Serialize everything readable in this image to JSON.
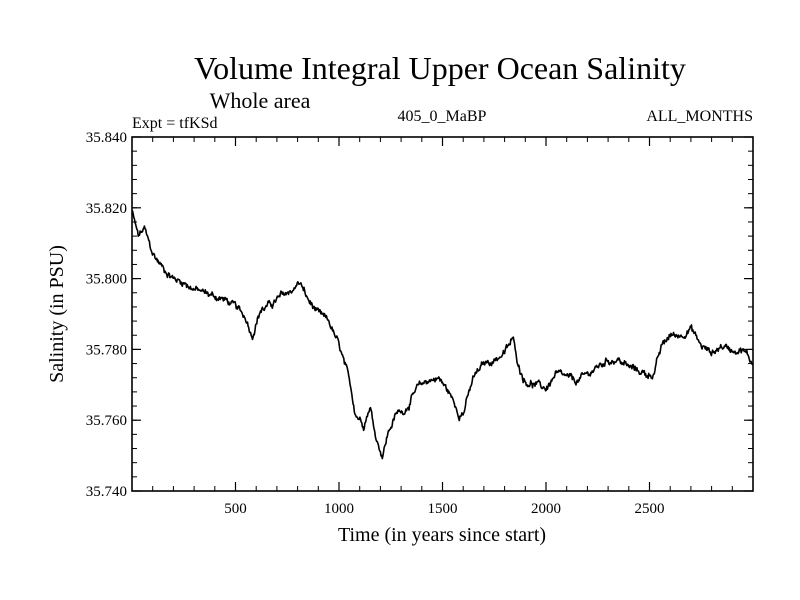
{
  "chart_data": {
    "type": "line",
    "title": "Volume Integral Upper Ocean Salinity",
    "subtitle": "Whole area",
    "info_left": "Expt = tfKSd",
    "info_center": "405_0_MaBP",
    "info_right": "ALL_MONTHS",
    "xlabel": "Time (in years since start)",
    "ylabel": "Salinity (in PSU)",
    "xlim": [
      0,
      3000
    ],
    "ylim": [
      35.74,
      35.84
    ],
    "x_ticks": [
      500,
      1000,
      1500,
      2000,
      2500
    ],
    "x_tick_labels": [
      "500",
      "1000",
      "1500",
      "2000",
      "2500"
    ],
    "y_ticks": [
      35.74,
      35.76,
      35.78,
      35.8,
      35.82,
      35.84
    ],
    "y_tick_labels": [
      "35.740",
      "35.760",
      "35.780",
      "35.800",
      "35.820",
      "35.840"
    ],
    "grid": false,
    "series": [
      {
        "name": "Salinity",
        "color": "#000000",
        "anchors_x": [
          0,
          30,
          60,
          100,
          150,
          200,
          250,
          300,
          350,
          400,
          450,
          500,
          550,
          580,
          620,
          680,
          720,
          780,
          810,
          850,
          900,
          950,
          1000,
          1050,
          1080,
          1120,
          1150,
          1180,
          1210,
          1240,
          1280,
          1320,
          1380,
          1420,
          1480,
          1530,
          1580,
          1600,
          1650,
          1700,
          1750,
          1800,
          1840,
          1870,
          1900,
          1950,
          2000,
          2050,
          2100,
          2150,
          2200,
          2250,
          2300,
          2350,
          2400,
          2450,
          2480,
          2520,
          2560,
          2600,
          2650,
          2700,
          2750,
          2800,
          2850,
          2900,
          2950,
          3000
        ],
        "anchors_y": [
          35.819,
          35.812,
          35.814,
          35.807,
          35.803,
          35.8,
          35.799,
          35.797,
          35.796,
          35.795,
          35.794,
          35.792,
          35.789,
          35.784,
          35.791,
          35.793,
          35.795,
          35.797,
          35.799,
          35.794,
          35.79,
          35.788,
          35.781,
          35.771,
          35.762,
          35.759,
          35.764,
          35.755,
          35.75,
          35.757,
          35.762,
          35.763,
          35.769,
          35.771,
          35.772,
          35.768,
          35.762,
          35.762,
          35.772,
          35.776,
          35.777,
          35.779,
          35.783,
          35.775,
          35.771,
          35.77,
          35.769,
          35.773,
          35.772,
          35.771,
          35.773,
          35.775,
          35.777,
          35.777,
          35.775,
          35.774,
          35.773,
          35.773,
          35.781,
          35.784,
          35.784,
          35.786,
          35.781,
          35.779,
          35.781,
          35.78,
          35.78,
          35.776
        ]
      }
    ]
  }
}
